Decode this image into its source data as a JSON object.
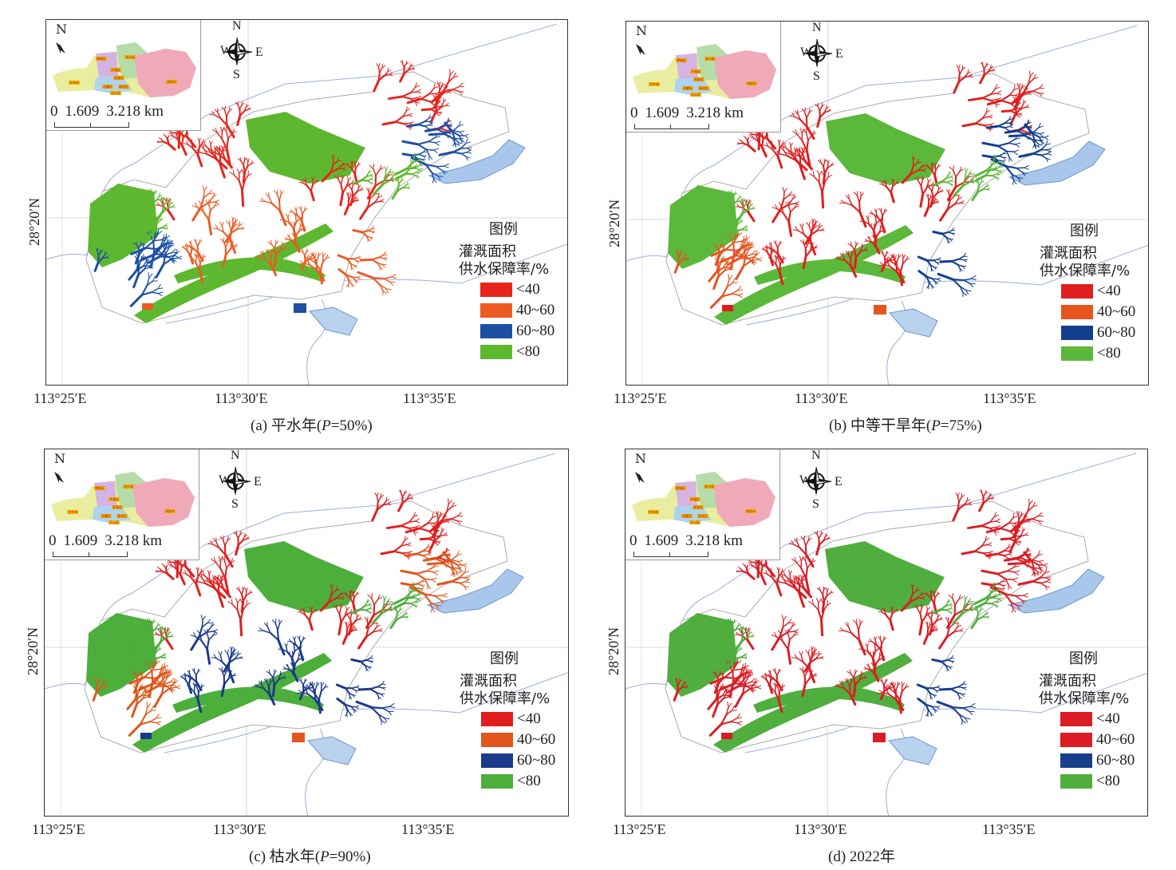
{
  "axes": {
    "lon_labels": [
      "113°25′E",
      "113°30′E",
      "113°35′E"
    ],
    "lat_label": "28°20′N"
  },
  "compass": {
    "n": "N",
    "s": "S",
    "w": "W",
    "e": "E"
  },
  "inset": {
    "north": "N",
    "scale": [
      "0",
      "1.609",
      "3.218 km"
    ],
    "districts": [
      "宁乡市",
      "望城区",
      "开福区",
      "长沙县",
      "芙蓉区",
      "岳麓区",
      "雨花区",
      "天心区",
      "浏阳市"
    ]
  },
  "legend": {
    "title": "图例",
    "line1": "灌溉面积",
    "line2": "供水保障率/%",
    "labels": [
      "<40",
      "40~60",
      "60~80",
      "<80"
    ]
  },
  "panels": [
    {
      "caption": {
        "prefix": "(a) 平水年(",
        "var": "P",
        "suffix": "=50%)"
      },
      "colors": [
        "#e8231c",
        "#ec5b22",
        "#1d4fa3",
        "#5db82f"
      ],
      "zones": {
        "north": 0,
        "ne_top": 0,
        "ne_east": 2,
        "central": 1,
        "southwest": 2,
        "trib_east": 1
      }
    },
    {
      "caption": {
        "prefix": "(b) 中等干旱年(",
        "var": "P",
        "suffix": "=75%)"
      },
      "colors": [
        "#e21d1d",
        "#e5541f",
        "#123f8f",
        "#5bb83a"
      ],
      "zones": {
        "north": 0,
        "ne_top": 0,
        "ne_east": 2,
        "central": 0,
        "southwest": 1,
        "trib_east": 2
      }
    },
    {
      "caption": {
        "prefix": "(c) 枯水年(",
        "var": "P",
        "suffix": "=90%)"
      },
      "colors": [
        "#e21d1d",
        "#e1561b",
        "#1a3a8a",
        "#4cae3b"
      ],
      "zones": {
        "north": 0,
        "ne_top": 0,
        "ne_east": 1,
        "central": 2,
        "southwest": 1,
        "trib_east": 2
      }
    },
    {
      "caption": {
        "prefix": "(d) 2022年",
        "var": "",
        "suffix": ""
      },
      "colors": [
        "#dc1c24",
        "#dc1c24",
        "#183f8c",
        "#4fae3d"
      ],
      "zones": {
        "north": 0,
        "ne_top": 0,
        "ne_east": 0,
        "central": 0,
        "southwest": 0,
        "trib_east": 2
      }
    }
  ]
}
